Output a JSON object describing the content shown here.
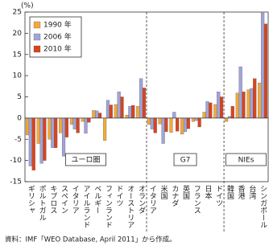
{
  "chart_data": {
    "type": "bar",
    "unit_label": "(%)",
    "groups": [
      {
        "name": "ユーロ圏",
        "categories": [
          "ギリシャ",
          "ポルトガル",
          "キプロス",
          "スペイン",
          "イタリア",
          "アイルランド",
          "ベルギー",
          "フィンランド",
          "ドイツ",
          "オーストリア",
          "オランダ"
        ]
      },
      {
        "name": "G7",
        "categories": [
          "イタリア",
          "米国",
          "カナダ",
          "英国",
          "フランス",
          "日本",
          "ドイツ"
        ]
      },
      {
        "name": "NIEs",
        "categories": [
          "韓国",
          "香港",
          "台湾",
          "シンガポール"
        ]
      }
    ],
    "series": [
      {
        "name": "1990 年",
        "color": "#f2a93b",
        "values": [
          -4,
          -6,
          -5,
          -3.5,
          -1.5,
          -0.8,
          1.8,
          -5.3,
          3.2,
          0.7,
          2.8,
          -1.5,
          -1.4,
          -3.4,
          -3.8,
          -0.8,
          1.4,
          3.2,
          -0.8,
          5.9,
          6.7,
          8.3
        ]
      },
      {
        "name": "2006 年",
        "color": "#a0a4da",
        "values": [
          -11.3,
          -10.7,
          -7,
          -9,
          -2.6,
          -3.6,
          1.7,
          4.2,
          6.2,
          2.8,
          9.3,
          -2.6,
          -6,
          1.4,
          -3.2,
          -0.6,
          3.9,
          6.2,
          0.4,
          12.1,
          7,
          24.8
        ]
      },
      {
        "name": "2010 年",
        "color": "#d9441d",
        "values": [
          -12.3,
          -10,
          -7,
          -4.5,
          -3.5,
          -1,
          1.2,
          3.1,
          5,
          3,
          7.1,
          -3.5,
          -3.2,
          -3.1,
          -2.5,
          -2.1,
          3.6,
          5,
          2.8,
          6.2,
          9.3,
          22.2
        ]
      }
    ],
    "ylim": [
      -15,
      25
    ],
    "yticks": [
      -15,
      -10,
      -5,
      0,
      5,
      10,
      15,
      20,
      25
    ],
    "source": "資料：IMF「WEO Database, April 2011」から作成。"
  }
}
